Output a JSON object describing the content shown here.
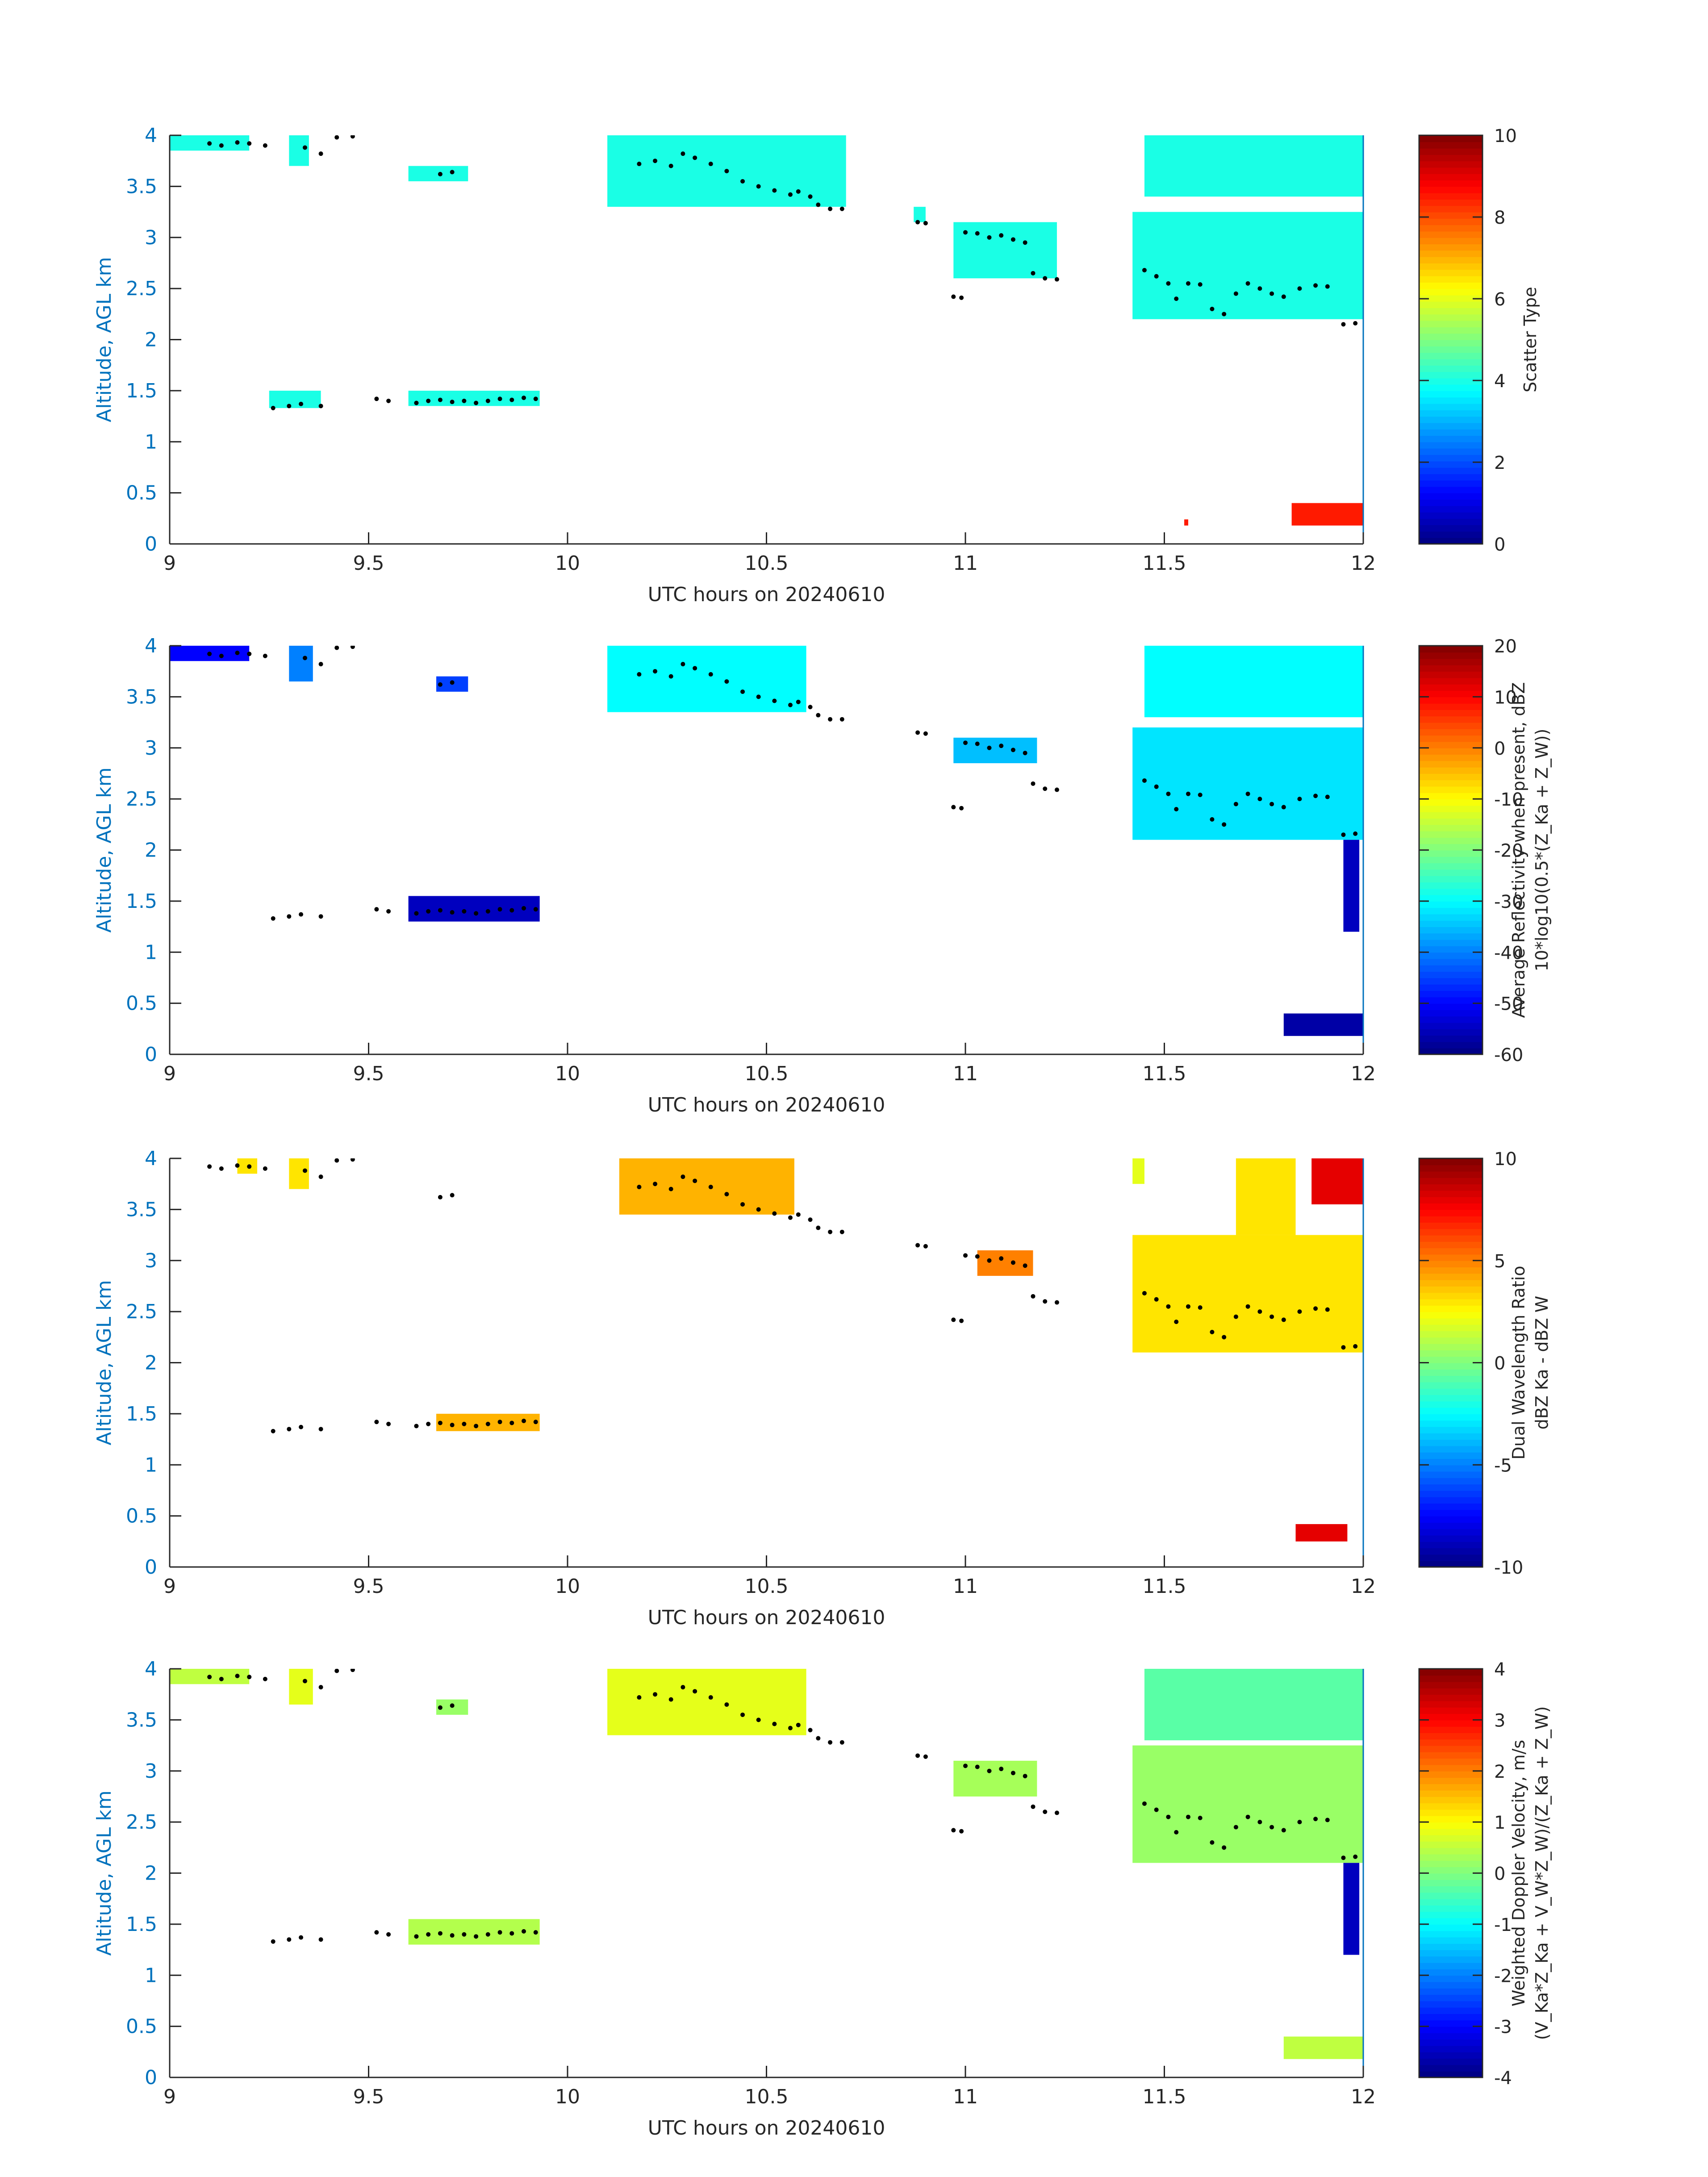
{
  "figure": {
    "panels": [
      {
        "id": "scatter-type",
        "ylabel": "Altitude, AGL km",
        "xlabel": "UTC hours on 20240610",
        "colorbar_label_lines": [
          "Scatter Type"
        ],
        "colorbar_ticks": [
          "0",
          "2",
          "4",
          "6",
          "8",
          "10"
        ]
      },
      {
        "id": "reflectivity",
        "ylabel": "Altitude, AGL km",
        "xlabel": "UTC hours on 20240610",
        "colorbar_label_lines": [
          "Average Reflectivity when present, dBZ",
          "10*log10(0.5*(Z_Ka + Z_W))"
        ],
        "colorbar_ticks": [
          "-60",
          "-50",
          "-40",
          "-30",
          "-20",
          "-10",
          "0",
          "10",
          "20"
        ]
      },
      {
        "id": "dwr",
        "ylabel": "Altitude, AGL km",
        "xlabel": "UTC hours on 20240610",
        "colorbar_label_lines": [
          "Dual Wavelength Ratio",
          "dBZ Ka - dBZ W"
        ],
        "colorbar_ticks": [
          "-10",
          "-5",
          "0",
          "5",
          "10"
        ]
      },
      {
        "id": "doppler",
        "ylabel": "Altitude, AGL km",
        "xlabel": "UTC hours on 20240610",
        "colorbar_label_lines": [
          "Weighted Doppler Velocity, m/s",
          "(V_Ka*Z_Ka + V_W*Z_W)/(Z_Ka + Z_W)"
        ],
        "colorbar_ticks": [
          "-4",
          "-3",
          "-2",
          "-1",
          "0",
          "1",
          "2",
          "3",
          "4"
        ]
      }
    ],
    "x_ticks": [
      "9",
      "9.5",
      "10",
      "10.5",
      "11",
      "11.5",
      "12"
    ],
    "y_ticks": [
      "0",
      "0.5",
      "1",
      "1.5",
      "2",
      "2.5",
      "3",
      "3.5",
      "4"
    ],
    "axis_label_color": "#0072BD",
    "colormap": "jet"
  },
  "chart_data": [
    {
      "type": "heatmap",
      "title": "",
      "xlabel": "UTC hours on 20240610",
      "ylabel": "Altitude, AGL km",
      "xlim": [
        9,
        12
      ],
      "ylim": [
        0,
        4
      ],
      "clim": [
        0,
        10
      ],
      "colorbar_label": "Scatter Type",
      "regions": [
        {
          "x": [
            9.0,
            9.2
          ],
          "y": [
            3.85,
            4.0
          ],
          "value": 4
        },
        {
          "x": [
            9.3,
            9.35
          ],
          "y": [
            3.7,
            4.0
          ],
          "value": 4
        },
        {
          "x": [
            9.6,
            9.75
          ],
          "y": [
            3.55,
            3.7
          ],
          "value": 4
        },
        {
          "x": [
            10.1,
            10.7
          ],
          "y": [
            3.3,
            4.0
          ],
          "value": 4
        },
        {
          "x": [
            10.87,
            10.9
          ],
          "y": [
            3.15,
            3.3
          ],
          "value": 4
        },
        {
          "x": [
            10.97,
            11.23
          ],
          "y": [
            2.6,
            3.15
          ],
          "value": 4
        },
        {
          "x": [
            11.45,
            12.0
          ],
          "y": [
            3.4,
            4.0
          ],
          "value": 4
        },
        {
          "x": [
            11.42,
            12.0
          ],
          "y": [
            2.2,
            3.25
          ],
          "value": 4
        },
        {
          "x": [
            9.25,
            9.38
          ],
          "y": [
            1.33,
            1.5
          ],
          "value": 4
        },
        {
          "x": [
            9.6,
            9.93
          ],
          "y": [
            1.35,
            1.5
          ],
          "value": 4
        },
        {
          "x": [
            11.55,
            11.56
          ],
          "y": [
            0.18,
            0.24
          ],
          "value": 8.5
        },
        {
          "x": [
            11.82,
            12.0
          ],
          "y": [
            0.18,
            0.4
          ],
          "value": 8.5
        }
      ]
    },
    {
      "type": "heatmap",
      "title": "",
      "xlabel": "UTC hours on 20240610",
      "ylabel": "Altitude, AGL km",
      "xlim": [
        9,
        12
      ],
      "ylim": [
        0,
        4
      ],
      "clim": [
        -60,
        20
      ],
      "colorbar_label": "Average Reflectivity when present, dBZ 10*log10(0.5*(Z_Ka + Z_W))",
      "regions": [
        {
          "x": [
            9.0,
            9.2
          ],
          "y": [
            3.85,
            4.0
          ],
          "value": -50
        },
        {
          "x": [
            9.3,
            9.36
          ],
          "y": [
            3.65,
            4.0
          ],
          "value": -40
        },
        {
          "x": [
            9.67,
            9.75
          ],
          "y": [
            3.55,
            3.7
          ],
          "value": -45
        },
        {
          "x": [
            10.1,
            10.6
          ],
          "y": [
            3.35,
            4.0
          ],
          "value": -30
        },
        {
          "x": [
            10.97,
            11.18
          ],
          "y": [
            2.85,
            3.1
          ],
          "value": -35
        },
        {
          "x": [
            11.45,
            12.0
          ],
          "y": [
            3.3,
            4.0
          ],
          "value": -30
        },
        {
          "x": [
            11.42,
            12.0
          ],
          "y": [
            2.1,
            3.2
          ],
          "value": -32
        },
        {
          "x": [
            9.6,
            9.93
          ],
          "y": [
            1.3,
            1.55
          ],
          "value": -55
        },
        {
          "x": [
            11.95,
            11.99
          ],
          "y": [
            1.2,
            2.1
          ],
          "value": -55
        },
        {
          "x": [
            11.8,
            12.0
          ],
          "y": [
            0.18,
            0.4
          ],
          "value": -57
        }
      ]
    },
    {
      "type": "heatmap",
      "title": "",
      "xlabel": "UTC hours on 20240610",
      "ylabel": "Altitude, AGL km",
      "xlim": [
        9,
        12
      ],
      "ylim": [
        0,
        4
      ],
      "clim": [
        -10,
        10
      ],
      "colorbar_label": "Dual Wavelength Ratio dBZ Ka - dBZ W",
      "regions": [
        {
          "x": [
            9.17,
            9.22
          ],
          "y": [
            3.85,
            4.0
          ],
          "value": 3
        },
        {
          "x": [
            9.3,
            9.35
          ],
          "y": [
            3.7,
            4.0
          ],
          "value": 3
        },
        {
          "x": [
            10.13,
            10.57
          ],
          "y": [
            3.45,
            4.0
          ],
          "value": 4
        },
        {
          "x": [
            11.03,
            11.17
          ],
          "y": [
            2.85,
            3.1
          ],
          "value": 5
        },
        {
          "x": [
            11.42,
            11.45
          ],
          "y": [
            3.75,
            4.0
          ],
          "value": 2
        },
        {
          "x": [
            11.68,
            11.83
          ],
          "y": [
            3.25,
            4.0
          ],
          "value": 3
        },
        {
          "x": [
            11.87,
            12.0
          ],
          "y": [
            3.55,
            4.0
          ],
          "value": 8
        },
        {
          "x": [
            11.42,
            12.0
          ],
          "y": [
            2.1,
            3.25
          ],
          "value": 3
        },
        {
          "x": [
            9.67,
            9.93
          ],
          "y": [
            1.33,
            1.5
          ],
          "value": 4
        },
        {
          "x": [
            11.83,
            11.96
          ],
          "y": [
            0.25,
            0.42
          ],
          "value": 8
        }
      ]
    },
    {
      "type": "heatmap",
      "title": "",
      "xlabel": "UTC hours on 20240610",
      "ylabel": "Altitude, AGL km",
      "xlim": [
        9,
        12
      ],
      "ylim": [
        0,
        4
      ],
      "clim": [
        -4,
        4
      ],
      "colorbar_label": "Weighted Doppler Velocity, m/s (V_Ka*Z_Ka + V_W*Z_W)/(Z_Ka + Z_W)",
      "regions": [
        {
          "x": [
            9.0,
            9.2
          ],
          "y": [
            3.85,
            4.0
          ],
          "value": 0.5
        },
        {
          "x": [
            9.3,
            9.36
          ],
          "y": [
            3.65,
            4.0
          ],
          "value": 0.8
        },
        {
          "x": [
            9.67,
            9.75
          ],
          "y": [
            3.55,
            3.7
          ],
          "value": 0.2
        },
        {
          "x": [
            10.1,
            10.6
          ],
          "y": [
            3.35,
            4.0
          ],
          "value": 0.8
        },
        {
          "x": [
            10.97,
            11.18
          ],
          "y": [
            2.75,
            3.1
          ],
          "value": 0.3
        },
        {
          "x": [
            11.45,
            12.0
          ],
          "y": [
            3.3,
            4.0
          ],
          "value": -0.3
        },
        {
          "x": [
            11.42,
            12.0
          ],
          "y": [
            2.1,
            3.25
          ],
          "value": 0.2
        },
        {
          "x": [
            9.6,
            9.93
          ],
          "y": [
            1.3,
            1.55
          ],
          "value": 0.4
        },
        {
          "x": [
            11.95,
            11.99
          ],
          "y": [
            1.2,
            2.1
          ],
          "value": -3.5
        },
        {
          "x": [
            11.8,
            12.0
          ],
          "y": [
            0.18,
            0.4
          ],
          "value": 0.5
        }
      ]
    }
  ],
  "cloud_base_markers": {
    "series": [
      {
        "x": 9.1,
        "y": 3.92
      },
      {
        "x": 9.13,
        "y": 3.9
      },
      {
        "x": 9.17,
        "y": 3.93
      },
      {
        "x": 9.2,
        "y": 3.92
      },
      {
        "x": 9.24,
        "y": 3.9
      },
      {
        "x": 9.34,
        "y": 3.88
      },
      {
        "x": 9.38,
        "y": 3.82
      },
      {
        "x": 9.42,
        "y": 3.98
      },
      {
        "x": 9.46,
        "y": 3.99
      },
      {
        "x": 9.68,
        "y": 3.62
      },
      {
        "x": 9.71,
        "y": 3.64
      },
      {
        "x": 10.18,
        "y": 3.72
      },
      {
        "x": 10.22,
        "y": 3.75
      },
      {
        "x": 10.26,
        "y": 3.7
      },
      {
        "x": 10.29,
        "y": 3.82
      },
      {
        "x": 10.32,
        "y": 3.78
      },
      {
        "x": 10.36,
        "y": 3.72
      },
      {
        "x": 10.4,
        "y": 3.65
      },
      {
        "x": 10.44,
        "y": 3.55
      },
      {
        "x": 10.48,
        "y": 3.5
      },
      {
        "x": 10.52,
        "y": 3.46
      },
      {
        "x": 10.56,
        "y": 3.42
      },
      {
        "x": 10.58,
        "y": 3.45
      },
      {
        "x": 10.61,
        "y": 3.4
      },
      {
        "x": 10.63,
        "y": 3.32
      },
      {
        "x": 10.66,
        "y": 3.28
      },
      {
        "x": 10.69,
        "y": 3.28
      },
      {
        "x": 10.88,
        "y": 3.15
      },
      {
        "x": 10.9,
        "y": 3.14
      },
      {
        "x": 10.97,
        "y": 2.42
      },
      {
        "x": 10.99,
        "y": 2.41
      },
      {
        "x": 11.0,
        "y": 3.05
      },
      {
        "x": 11.03,
        "y": 3.04
      },
      {
        "x": 11.06,
        "y": 3.0
      },
      {
        "x": 11.09,
        "y": 3.02
      },
      {
        "x": 11.12,
        "y": 2.98
      },
      {
        "x": 11.15,
        "y": 2.95
      },
      {
        "x": 11.17,
        "y": 2.65
      },
      {
        "x": 11.2,
        "y": 2.6
      },
      {
        "x": 11.23,
        "y": 2.59
      },
      {
        "x": 11.45,
        "y": 2.68
      },
      {
        "x": 11.48,
        "y": 2.62
      },
      {
        "x": 11.51,
        "y": 2.55
      },
      {
        "x": 11.53,
        "y": 2.4
      },
      {
        "x": 11.56,
        "y": 2.55
      },
      {
        "x": 11.59,
        "y": 2.54
      },
      {
        "x": 11.62,
        "y": 2.3
      },
      {
        "x": 11.65,
        "y": 2.25
      },
      {
        "x": 11.68,
        "y": 2.45
      },
      {
        "x": 11.71,
        "y": 2.55
      },
      {
        "x": 11.74,
        "y": 2.5
      },
      {
        "x": 11.77,
        "y": 2.45
      },
      {
        "x": 11.8,
        "y": 2.42
      },
      {
        "x": 11.84,
        "y": 2.5
      },
      {
        "x": 11.88,
        "y": 2.53
      },
      {
        "x": 11.91,
        "y": 2.52
      },
      {
        "x": 11.95,
        "y": 2.15
      },
      {
        "x": 11.98,
        "y": 2.16
      },
      {
        "x": 9.26,
        "y": 1.33
      },
      {
        "x": 9.3,
        "y": 1.35
      },
      {
        "x": 9.33,
        "y": 1.37
      },
      {
        "x": 9.38,
        "y": 1.35
      },
      {
        "x": 9.52,
        "y": 1.42
      },
      {
        "x": 9.55,
        "y": 1.4
      },
      {
        "x": 9.62,
        "y": 1.38
      },
      {
        "x": 9.65,
        "y": 1.4
      },
      {
        "x": 9.68,
        "y": 1.41
      },
      {
        "x": 9.71,
        "y": 1.39
      },
      {
        "x": 9.74,
        "y": 1.4
      },
      {
        "x": 9.77,
        "y": 1.38
      },
      {
        "x": 9.8,
        "y": 1.4
      },
      {
        "x": 9.83,
        "y": 1.42
      },
      {
        "x": 9.86,
        "y": 1.41
      },
      {
        "x": 9.89,
        "y": 1.43
      },
      {
        "x": 9.92,
        "y": 1.42
      }
    ]
  }
}
